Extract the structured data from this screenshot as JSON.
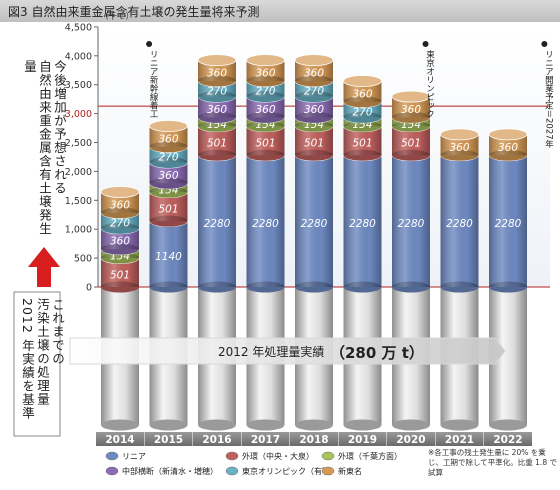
{
  "header": {
    "title": "図3 自然由来重金属含有土壌の発生量将来予測"
  },
  "side_labels": {
    "future": [
      "今後増加が予想される",
      "自然由来重金属含有土壌発生量"
    ],
    "past": [
      "これまでの",
      "汚染土壌の処理量",
      "2012 年実績を基準"
    ]
  },
  "baseline": {
    "label": "2012 年処理量実績",
    "value": "（280 万 t）"
  },
  "annotations": {
    "linear_shinkansen": "リニア新幹線着工",
    "olympics": "東京オリンピック",
    "linear_opening": "リニア開業予定＝2027年"
  },
  "footnote": "※各工事の残土発生量に 20% を乗じ、工期で除して平準化。比重 1.8 で試算",
  "chart_data": {
    "type": "bar",
    "stacked": true,
    "unit": "（千ｔ）",
    "ylim": [
      0,
      4500
    ],
    "yticks": [
      0,
      500,
      1000,
      1500,
      2000,
      2500,
      3000,
      3500,
      4000,
      4500
    ],
    "ytick_labels": [
      "0",
      "500",
      "1,000",
      "1,500",
      "2,000",
      "2,500",
      "3,000",
      "3,500",
      "4,000",
      "4,500"
    ],
    "reference_line": 3130,
    "categories": [
      "2014",
      "2015",
      "2016",
      "2017",
      "2018",
      "2019",
      "2020",
      "2021",
      "2022"
    ],
    "series": [
      {
        "name": "リニア",
        "color": "#6f8bc4",
        "values": [
          0,
          1140,
          2280,
          2280,
          2280,
          2280,
          2280,
          2280,
          2280
        ]
      },
      {
        "name": "外環（中央・大泉）",
        "color": "#c1605e",
        "values": [
          501,
          501,
          501,
          501,
          501,
          501,
          501,
          0,
          0
        ]
      },
      {
        "name": "外環（千葉方面）",
        "color": "#a7c35c",
        "values": [
          154,
          154,
          154,
          154,
          154,
          154,
          154,
          0,
          0
        ]
      },
      {
        "name": "中部横断（新清水・増穂）",
        "color": "#8b6cb4",
        "values": [
          360,
          360,
          360,
          360,
          360,
          0,
          0,
          0,
          0
        ]
      },
      {
        "name": "東京オリンピック（有明）",
        "color": "#69b2c6",
        "values": [
          270,
          270,
          270,
          270,
          270,
          270,
          0,
          0,
          0
        ]
      },
      {
        "name": "新東名",
        "color": "#d69a55",
        "values": [
          360,
          360,
          360,
          360,
          360,
          360,
          360,
          360,
          360
        ]
      }
    ],
    "legend_position": "bottom"
  }
}
